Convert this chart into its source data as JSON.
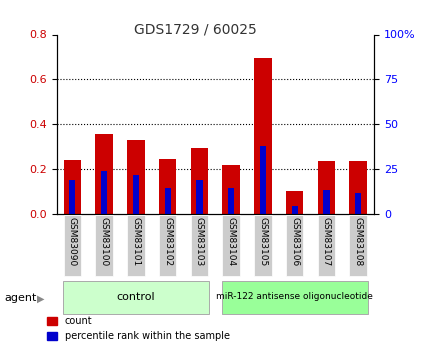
{
  "title": "GDS1729 / 60025",
  "categories": [
    "GSM83090",
    "GSM83100",
    "GSM83101",
    "GSM83102",
    "GSM83103",
    "GSM83104",
    "GSM83105",
    "GSM83106",
    "GSM83107",
    "GSM83108"
  ],
  "red_values": [
    0.24,
    0.355,
    0.33,
    0.245,
    0.295,
    0.22,
    0.695,
    0.102,
    0.235,
    0.235
  ],
  "blue_values": [
    0.15,
    0.19,
    0.175,
    0.115,
    0.15,
    0.115,
    0.305,
    0.035,
    0.105,
    0.095
  ],
  "ylim_left": [
    0,
    0.8
  ],
  "ylim_right": [
    0,
    100
  ],
  "yticks_left": [
    0,
    0.2,
    0.4,
    0.6,
    0.8
  ],
  "yticks_right": [
    0,
    25,
    50,
    75,
    100
  ],
  "grid_vals": [
    0.2,
    0.4,
    0.6
  ],
  "bar_width": 0.55,
  "red_color": "#cc0000",
  "blue_color": "#0000cc",
  "group1_label": "control",
  "group2_label": "miR-122 antisense oligonucleotide",
  "group1_indices": [
    0,
    1,
    2,
    3,
    4
  ],
  "group2_indices": [
    5,
    6,
    7,
    8,
    9
  ],
  "agent_label": "agent",
  "legend_count": "count",
  "legend_pct": "percentile rank within the sample",
  "group1_color": "#ccffcc",
  "group2_color": "#99ff99",
  "title_color": "#333333"
}
